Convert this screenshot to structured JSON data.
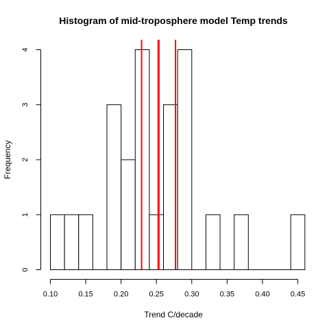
{
  "chart_data": {
    "type": "bar",
    "title": "Histogram of mid-troposphere model Temp trends",
    "xlabel": "Trend C/decade",
    "ylabel": "Frequency",
    "bin_edges": [
      0.1,
      0.12,
      0.14,
      0.16,
      0.18,
      0.2,
      0.22,
      0.24,
      0.26,
      0.28,
      0.3,
      0.32,
      0.34,
      0.36,
      0.38,
      0.4,
      0.42,
      0.44,
      0.46
    ],
    "counts": [
      1,
      1,
      1,
      0,
      3,
      2,
      4,
      1,
      3,
      4,
      0,
      1,
      0,
      1,
      0,
      0,
      0,
      1
    ],
    "xlim": [
      0.1,
      0.45
    ],
    "ylim": [
      0,
      4
    ],
    "x_ticks": [
      "0.10",
      "0.15",
      "0.20",
      "0.25",
      "0.30",
      "0.35",
      "0.40",
      "0.45"
    ],
    "y_ticks": [
      "0",
      "1",
      "2",
      "3",
      "4"
    ],
    "reference_lines": [
      {
        "x": 0.229,
        "color": "#ff0000",
        "style": "thin"
      },
      {
        "x": 0.253,
        "color": "#ff0000",
        "style": "thick"
      },
      {
        "x": 0.277,
        "color": "#ff0000",
        "style": "thin"
      }
    ],
    "grid": false,
    "bar_fill": "#ffffff",
    "bar_stroke": "#000000"
  }
}
